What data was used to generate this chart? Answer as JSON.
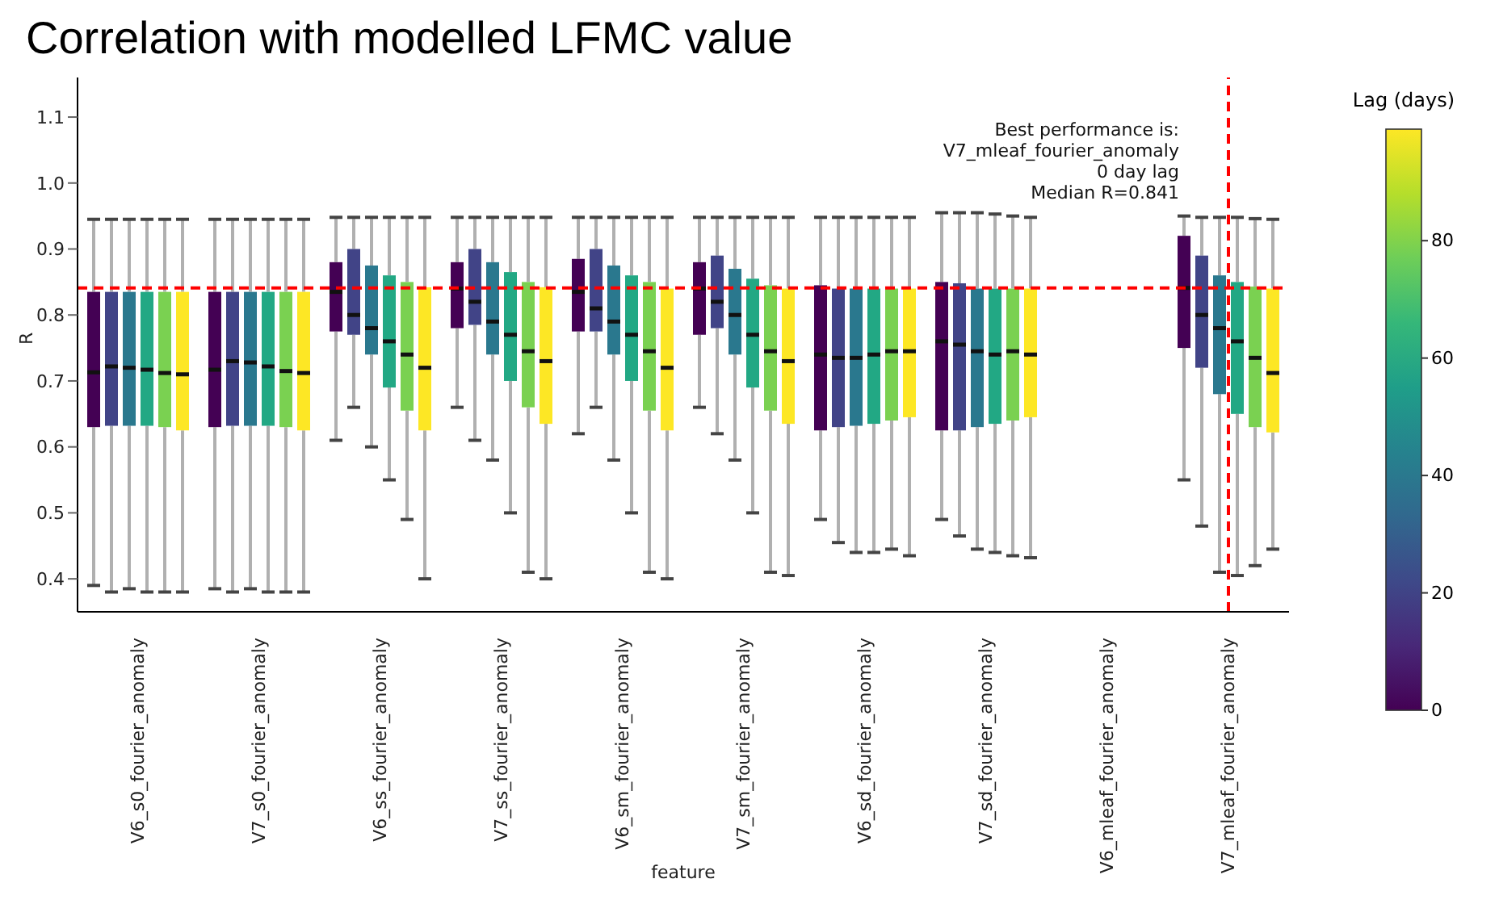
{
  "chart_data": {
    "type": "box",
    "title": "Correlation with modelled LFMC value",
    "xlabel": "feature",
    "ylabel": "R",
    "clabel": "Lag (days)",
    "clim": [
      0,
      99
    ],
    "cticks": [
      0,
      20,
      40,
      60,
      80
    ],
    "annotations": [
      "Best performance is:",
      "V7_mleaf_fourier_anomaly",
      "0 day lag",
      "Median R=0.841"
    ],
    "categories": [
      "V6_s0_fourier_anomaly",
      "V7_s0_fourier_anomaly",
      "V6_ss_fourier_anomaly",
      "V7_ss_fourier_anomaly",
      "V6_sm_fourier_anomaly",
      "V7_sm_fourier_anomaly",
      "V6_sd_fourier_anomaly",
      "V7_sd_fourier_anomaly",
      "V6_mleaf_fourier_anomaly",
      "V7_mleaf_fourier_anomaly"
    ],
    "ylim": [
      0.35,
      1.16
    ],
    "yticks": [
      0.4,
      0.5,
      0.6,
      0.7,
      0.8,
      0.9,
      {
        "value": 1,
        "label": "1.0"
      },
      1.1
    ],
    "ref_lines": [
      {
        "axis": "y",
        "value": 0.841,
        "color": "#ff0000",
        "line_style": "dashed"
      },
      {
        "axis": "x",
        "value": "V7_mleaf_fourier_anomaly",
        "color": "#ff0000",
        "line_style": "dashed"
      }
    ],
    "series": [
      {
        "color": "#440154",
        "boxes": [
          {
            "low": 0.39,
            "q1": 0.63,
            "median": 0.713,
            "q3": 0.835,
            "high": 0.945
          },
          {
            "low": 0.385,
            "q1": 0.63,
            "median": 0.717,
            "q3": 0.835,
            "high": 0.945
          },
          {
            "low": 0.61,
            "q1": 0.775,
            "median": 0.835,
            "q3": 0.88,
            "high": 0.948
          },
          {
            "low": 0.66,
            "q1": 0.78,
            "median": 0.84,
            "q3": 0.88,
            "high": 0.948
          },
          {
            "low": 0.62,
            "q1": 0.775,
            "median": 0.835,
            "q3": 0.885,
            "high": 0.948
          },
          {
            "low": 0.66,
            "q1": 0.77,
            "median": 0.84,
            "q3": 0.88,
            "high": 0.948
          },
          {
            "low": 0.49,
            "q1": 0.625,
            "median": 0.74,
            "q3": 0.845,
            "high": 0.948
          },
          {
            "low": 0.49,
            "q1": 0.625,
            "median": 0.76,
            "q3": 0.85,
            "high": 0.955
          },
          null,
          {
            "low": 0.55,
            "q1": 0.75,
            "median": 0.841,
            "q3": 0.92,
            "high": 0.95
          }
        ]
      },
      {
        "color": "#414487",
        "boxes": [
          {
            "low": 0.38,
            "q1": 0.632,
            "median": 0.722,
            "q3": 0.835,
            "high": 0.945
          },
          {
            "low": 0.38,
            "q1": 0.632,
            "median": 0.73,
            "q3": 0.835,
            "high": 0.945
          },
          {
            "low": 0.66,
            "q1": 0.77,
            "median": 0.8,
            "q3": 0.9,
            "high": 0.948
          },
          {
            "low": 0.61,
            "q1": 0.785,
            "median": 0.82,
            "q3": 0.9,
            "high": 0.948
          },
          {
            "low": 0.66,
            "q1": 0.775,
            "median": 0.81,
            "q3": 0.9,
            "high": 0.948
          },
          {
            "low": 0.62,
            "q1": 0.78,
            "median": 0.82,
            "q3": 0.89,
            "high": 0.948
          },
          {
            "low": 0.455,
            "q1": 0.63,
            "median": 0.735,
            "q3": 0.84,
            "high": 0.948
          },
          {
            "low": 0.465,
            "q1": 0.625,
            "median": 0.755,
            "q3": 0.848,
            "high": 0.955
          },
          null,
          {
            "low": 0.48,
            "q1": 0.72,
            "median": 0.8,
            "q3": 0.89,
            "high": 0.948
          }
        ]
      },
      {
        "color": "#2a788e",
        "boxes": [
          {
            "low": 0.385,
            "q1": 0.632,
            "median": 0.72,
            "q3": 0.835,
            "high": 0.945
          },
          {
            "low": 0.385,
            "q1": 0.632,
            "median": 0.728,
            "q3": 0.835,
            "high": 0.945
          },
          {
            "low": 0.6,
            "q1": 0.74,
            "median": 0.78,
            "q3": 0.875,
            "high": 0.948
          },
          {
            "low": 0.58,
            "q1": 0.74,
            "median": 0.79,
            "q3": 0.88,
            "high": 0.948
          },
          {
            "low": 0.58,
            "q1": 0.74,
            "median": 0.79,
            "q3": 0.875,
            "high": 0.948
          },
          {
            "low": 0.58,
            "q1": 0.74,
            "median": 0.8,
            "q3": 0.87,
            "high": 0.948
          },
          {
            "low": 0.44,
            "q1": 0.632,
            "median": 0.735,
            "q3": 0.84,
            "high": 0.948
          },
          {
            "low": 0.445,
            "q1": 0.63,
            "median": 0.745,
            "q3": 0.84,
            "high": 0.955
          },
          null,
          {
            "low": 0.41,
            "q1": 0.68,
            "median": 0.78,
            "q3": 0.86,
            "high": 0.948
          }
        ]
      },
      {
        "color": "#22a884",
        "boxes": [
          {
            "low": 0.38,
            "q1": 0.632,
            "median": 0.717,
            "q3": 0.835,
            "high": 0.945
          },
          {
            "low": 0.38,
            "q1": 0.632,
            "median": 0.722,
            "q3": 0.835,
            "high": 0.945
          },
          {
            "low": 0.55,
            "q1": 0.69,
            "median": 0.76,
            "q3": 0.86,
            "high": 0.948
          },
          {
            "low": 0.5,
            "q1": 0.7,
            "median": 0.77,
            "q3": 0.865,
            "high": 0.948
          },
          {
            "low": 0.5,
            "q1": 0.7,
            "median": 0.77,
            "q3": 0.86,
            "high": 0.948
          },
          {
            "low": 0.5,
            "q1": 0.69,
            "median": 0.77,
            "q3": 0.855,
            "high": 0.948
          },
          {
            "low": 0.44,
            "q1": 0.635,
            "median": 0.74,
            "q3": 0.84,
            "high": 0.948
          },
          {
            "low": 0.44,
            "q1": 0.635,
            "median": 0.74,
            "q3": 0.84,
            "high": 0.953
          },
          null,
          {
            "low": 0.405,
            "q1": 0.65,
            "median": 0.76,
            "q3": 0.85,
            "high": 0.948
          }
        ]
      },
      {
        "color": "#7ad151",
        "boxes": [
          {
            "low": 0.38,
            "q1": 0.63,
            "median": 0.712,
            "q3": 0.835,
            "high": 0.945
          },
          {
            "low": 0.38,
            "q1": 0.63,
            "median": 0.715,
            "q3": 0.835,
            "high": 0.945
          },
          {
            "low": 0.49,
            "q1": 0.655,
            "median": 0.74,
            "q3": 0.85,
            "high": 0.948
          },
          {
            "low": 0.41,
            "q1": 0.66,
            "median": 0.745,
            "q3": 0.85,
            "high": 0.948
          },
          {
            "low": 0.41,
            "q1": 0.655,
            "median": 0.745,
            "q3": 0.85,
            "high": 0.948
          },
          {
            "low": 0.41,
            "q1": 0.655,
            "median": 0.745,
            "q3": 0.845,
            "high": 0.948
          },
          {
            "low": 0.445,
            "q1": 0.64,
            "median": 0.745,
            "q3": 0.84,
            "high": 0.948
          },
          {
            "low": 0.435,
            "q1": 0.64,
            "median": 0.745,
            "q3": 0.84,
            "high": 0.95
          },
          null,
          {
            "low": 0.42,
            "q1": 0.63,
            "median": 0.735,
            "q3": 0.843,
            "high": 0.946
          }
        ]
      },
      {
        "color": "#fde725",
        "boxes": [
          {
            "low": 0.38,
            "q1": 0.625,
            "median": 0.71,
            "q3": 0.835,
            "high": 0.945
          },
          {
            "low": 0.38,
            "q1": 0.625,
            "median": 0.712,
            "q3": 0.835,
            "high": 0.945
          },
          {
            "low": 0.4,
            "q1": 0.625,
            "median": 0.72,
            "q3": 0.842,
            "high": 0.948
          },
          {
            "low": 0.4,
            "q1": 0.635,
            "median": 0.73,
            "q3": 0.842,
            "high": 0.948
          },
          {
            "low": 0.4,
            "q1": 0.625,
            "median": 0.72,
            "q3": 0.84,
            "high": 0.948
          },
          {
            "low": 0.405,
            "q1": 0.635,
            "median": 0.73,
            "q3": 0.84,
            "high": 0.948
          },
          {
            "low": 0.435,
            "q1": 0.645,
            "median": 0.745,
            "q3": 0.84,
            "high": 0.948
          },
          {
            "low": 0.432,
            "q1": 0.645,
            "median": 0.74,
            "q3": 0.84,
            "high": 0.948
          },
          null,
          {
            "low": 0.445,
            "q1": 0.622,
            "median": 0.712,
            "q3": 0.84,
            "high": 0.945
          }
        ]
      }
    ]
  }
}
